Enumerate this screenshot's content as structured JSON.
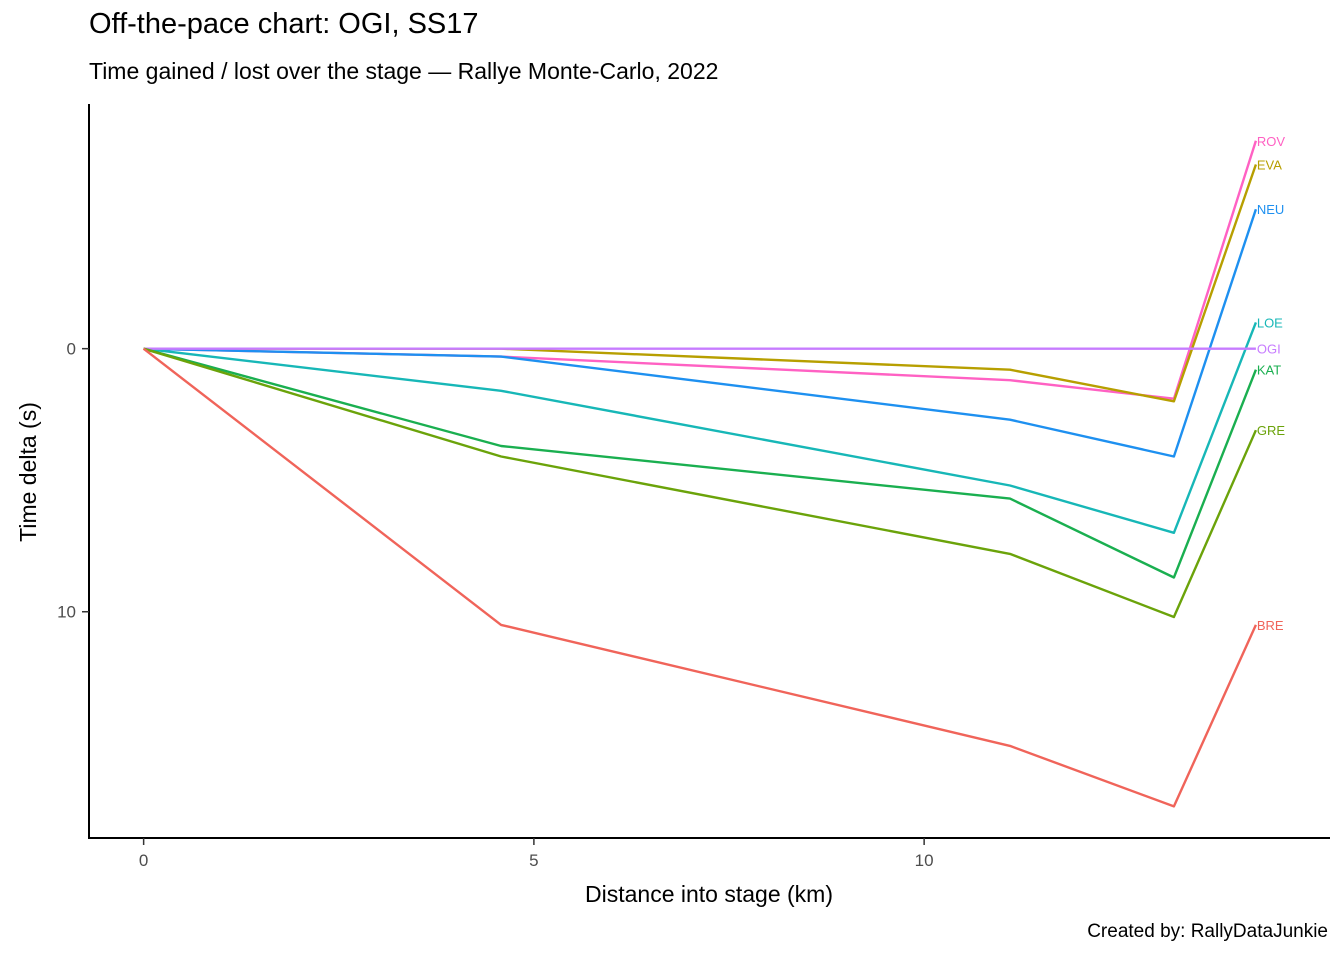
{
  "title": "Off-the-pace chart: OGI, SS17",
  "subtitle": "Time gained / lost over the stage — Rallye Monte-Carlo, 2022",
  "caption": "Created by: RallyDataJunkie",
  "chart_data": {
    "type": "line",
    "title": "Off-the-pace chart: OGI, SS17",
    "subtitle": "Time gained / lost over the stage — Rallye Monte-Carlo, 2022",
    "xlabel": "Distance into stage (km)",
    "ylabel": "Time delta (s)",
    "xlim": [
      -0.7,
      15.2
    ],
    "ylim": [
      -9.3,
      18.6
    ],
    "y_reversed": true,
    "x_ticks": [
      0,
      5,
      10
    ],
    "y_ticks": [
      0,
      10
    ],
    "grid": false,
    "legend": "none (direct end-of-line labels)",
    "x": [
      0,
      4.58,
      11.1,
      13.2,
      14.25
    ],
    "series": [
      {
        "name": "ROV",
        "color": "#FF61C3",
        "values": [
          0,
          0.3,
          1.2,
          1.9,
          -7.9
        ]
      },
      {
        "name": "EVA",
        "color": "#B79F00",
        "values": [
          0,
          0.0,
          0.8,
          2.0,
          -7.0
        ]
      },
      {
        "name": "NEU",
        "color": "#1E90F0",
        "values": [
          0,
          0.3,
          2.7,
          4.1,
          -5.3
        ]
      },
      {
        "name": "LOE",
        "color": "#17B7B7",
        "values": [
          0,
          1.6,
          5.2,
          7.0,
          -1.0
        ]
      },
      {
        "name": "OGI",
        "color": "#C77CFF",
        "values": [
          0,
          0,
          0,
          0,
          0
        ]
      },
      {
        "name": "KAT",
        "color": "#1AAF50",
        "values": [
          0,
          3.7,
          5.7,
          8.7,
          0.8
        ]
      },
      {
        "name": "GRE",
        "color": "#6BA30A",
        "values": [
          0,
          4.1,
          7.8,
          10.2,
          3.1
        ]
      },
      {
        "name": "BRE",
        "color": "#F0645A",
        "values": [
          0,
          10.5,
          15.1,
          17.4,
          10.5
        ]
      }
    ]
  }
}
